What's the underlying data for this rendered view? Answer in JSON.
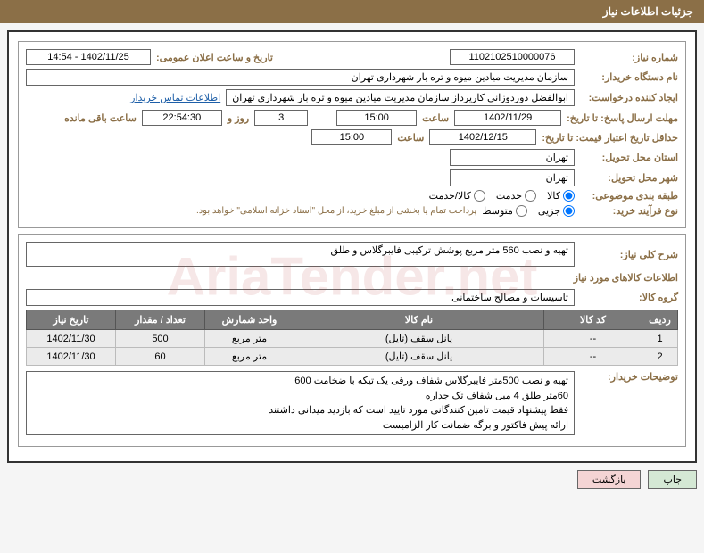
{
  "header": {
    "title": "جزئیات اطلاعات نیاز"
  },
  "watermark": "AriaTender.net",
  "fields": {
    "need_number_label": "شماره نیاز:",
    "need_number": "1102102510000076",
    "announce_date_label": "تاریخ و ساعت اعلان عمومی:",
    "announce_date": "1402/11/25 - 14:54",
    "buyer_org_label": "نام دستگاه خریدار:",
    "buyer_org": "سازمان مدیریت میادین میوه و تره بار شهرداری تهران",
    "requester_label": "ایجاد کننده درخواست:",
    "requester": "ابوالفضل دوزدوزانی کارپرداز سازمان مدیریت میادین میوه و تره بار شهرداری تهران",
    "contact_link": "اطلاعات تماس خریدار",
    "reply_deadline_label": "مهلت ارسال پاسخ: تا تاریخ:",
    "reply_date": "1402/11/29",
    "time_label": "ساعت",
    "reply_time": "15:00",
    "days": "3",
    "days_label": "روز و",
    "remaining": "22:54:30",
    "remaining_label": "ساعت باقی مانده",
    "price_validity_label": "حداقل تاریخ اعتبار قیمت: تا تاریخ:",
    "price_date": "1402/12/15",
    "price_time": "15:00",
    "delivery_province_label": "استان محل تحویل:",
    "delivery_province": "تهران",
    "delivery_city_label": "شهر محل تحویل:",
    "delivery_city": "تهران",
    "category_label": "طبقه بندی موضوعی:",
    "category_goods": "کالا",
    "category_service": "خدمت",
    "category_both": "کالا/خدمت",
    "purchase_type_label": "نوع فرآیند خرید:",
    "purchase_partial": "جزیی",
    "purchase_medium": "متوسط",
    "purchase_note": "پرداخت تمام یا بخشی از مبلغ خرید، از محل \"اسناد خزانه اسلامی\" خواهد بود.",
    "general_desc_label": "شرح کلی نیاز:",
    "general_desc": "تهیه و نصب 560 متر مربع پوشش ترکیبی فایبرگلاس و طلق",
    "goods_info_label": "اطلاعات کالاهای مورد نیاز",
    "goods_group_label": "گروه کالا:",
    "goods_group": "تاسیسات و مصالح ساختمانی",
    "buyer_notes_label": "توضیحات خریدار:",
    "buyer_notes_l1": "تهیه و نصب 500متر فایبرگلاس شفاف ورقی یک تیکه با ضخامت 600",
    "buyer_notes_l2": "60متر طلق 4 میل شفاف تک جداره",
    "buyer_notes_l3": "فقط پیشنهاد قیمت تامین کنندگانی مورد تایید است که بازدید میدانی داشتند",
    "buyer_notes_l4": "ارائه پیش فاکتور و برگه ضمانت کار الزامیست"
  },
  "table": {
    "headers": {
      "row": "ردیف",
      "code": "کد کالا",
      "name": "نام کالا",
      "unit": "واحد شمارش",
      "qty": "تعداد / مقدار",
      "date": "تاریخ نیاز"
    },
    "rows": [
      {
        "row": "1",
        "code": "--",
        "name": "پانل سقف (تایل)",
        "unit": "متر مربع",
        "qty": "500",
        "date": "1402/11/30"
      },
      {
        "row": "2",
        "code": "--",
        "name": "پانل سقف (تایل)",
        "unit": "متر مربع",
        "qty": "60",
        "date": "1402/11/30"
      }
    ]
  },
  "buttons": {
    "print": "چاپ",
    "back": "بازگشت"
  }
}
